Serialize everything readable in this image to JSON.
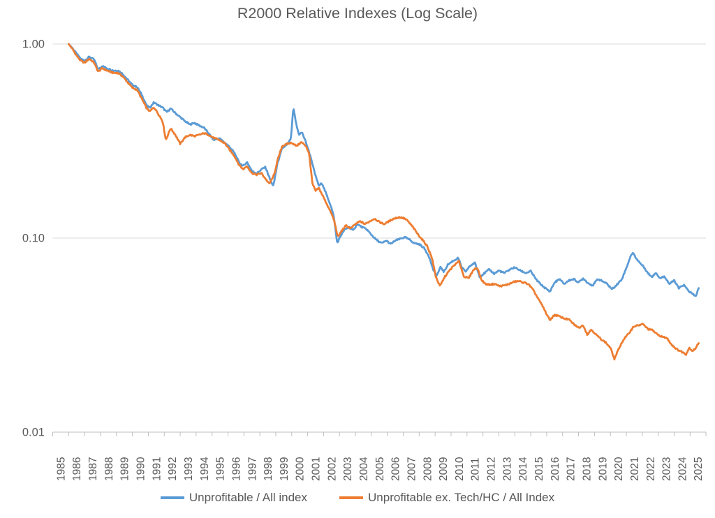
{
  "title": "R2000 Relative Indexes (Log Scale)",
  "colors": {
    "blue": "#5B9BD5",
    "orange": "#ED7D31",
    "gridline": "#D9D9D9",
    "axis": "#BFBFBF",
    "text": "#595959"
  },
  "y_axis": {
    "labels": [
      "1.00",
      "0.10",
      "0.01"
    ],
    "values": [
      1.0,
      0.1,
      0.01
    ]
  },
  "x_axis": {
    "years": [
      "1985",
      "1986",
      "1987",
      "1988",
      "1989",
      "1990",
      "1991",
      "1992",
      "1993",
      "1994",
      "1995",
      "1996",
      "1997",
      "1998",
      "1999",
      "2000",
      "2001",
      "2002",
      "2003",
      "2004",
      "2005",
      "2006",
      "2007",
      "2008",
      "2009",
      "2010",
      "2011",
      "2012",
      "2013",
      "2014",
      "2015",
      "2016",
      "2017",
      "2018",
      "2019",
      "2020",
      "2021",
      "2022",
      "2023",
      "2024",
      "2025"
    ]
  },
  "legend": [
    {
      "label": "Unprofitable / All index",
      "color": "#5B9BD5"
    },
    {
      "label": "Unprofitable ex. Tech/HC / All Index",
      "color": "#ED7D31"
    }
  ],
  "chart_data": {
    "type": "line",
    "title": "R2000 Relative Indexes (Log Scale)",
    "y_scale": "log10",
    "ylim": [
      0.01,
      1.0
    ],
    "x_range": [
      1985,
      2026
    ],
    "grid": "horizontal-decades",
    "legend_position": "bottom",
    "series": [
      {
        "name": "Unprofitable / All index",
        "color": "#5B9BD5",
        "points": [
          [
            1986.0,
            1.0
          ],
          [
            1986.25,
            0.95
          ],
          [
            1986.5,
            0.89
          ],
          [
            1986.75,
            0.84
          ],
          [
            1987.0,
            0.82
          ],
          [
            1987.3,
            0.86
          ],
          [
            1987.6,
            0.83
          ],
          [
            1987.85,
            0.74
          ],
          [
            1988.1,
            0.77
          ],
          [
            1988.4,
            0.75
          ],
          [
            1988.8,
            0.73
          ],
          [
            1989.1,
            0.73
          ],
          [
            1989.4,
            0.7
          ],
          [
            1989.7,
            0.655
          ],
          [
            1990.0,
            0.615
          ],
          [
            1990.3,
            0.6
          ],
          [
            1990.6,
            0.545
          ],
          [
            1990.9,
            0.48
          ],
          [
            1991.1,
            0.47
          ],
          [
            1991.35,
            0.5
          ],
          [
            1991.6,
            0.485
          ],
          [
            1991.9,
            0.47
          ],
          [
            1992.15,
            0.445
          ],
          [
            1992.4,
            0.465
          ],
          [
            1992.7,
            0.44
          ],
          [
            1993.0,
            0.42
          ],
          [
            1993.3,
            0.4
          ],
          [
            1993.6,
            0.385
          ],
          [
            1993.9,
            0.392
          ],
          [
            1994.2,
            0.38
          ],
          [
            1994.5,
            0.37
          ],
          [
            1994.8,
            0.345
          ],
          [
            1995.1,
            0.32
          ],
          [
            1995.45,
            0.327
          ],
          [
            1995.8,
            0.31
          ],
          [
            1996.1,
            0.295
          ],
          [
            1996.4,
            0.275
          ],
          [
            1996.7,
            0.245
          ],
          [
            1996.95,
            0.235
          ],
          [
            1997.2,
            0.246
          ],
          [
            1997.5,
            0.222
          ],
          [
            1997.8,
            0.215
          ],
          [
            1998.1,
            0.226
          ],
          [
            1998.35,
            0.232
          ],
          [
            1998.65,
            0.2
          ],
          [
            1998.85,
            0.185
          ],
          [
            1999.1,
            0.242
          ],
          [
            1999.4,
            0.29
          ],
          [
            1999.7,
            0.302
          ],
          [
            1999.95,
            0.325
          ],
          [
            2000.1,
            0.47
          ],
          [
            2000.3,
            0.38
          ],
          [
            2000.45,
            0.342
          ],
          [
            2000.65,
            0.35
          ],
          [
            2000.9,
            0.31
          ],
          [
            2001.2,
            0.26
          ],
          [
            2001.45,
            0.215
          ],
          [
            2001.7,
            0.186
          ],
          [
            2001.9,
            0.192
          ],
          [
            2002.2,
            0.166
          ],
          [
            2002.45,
            0.147
          ],
          [
            2002.65,
            0.128
          ],
          [
            2002.85,
            0.094
          ],
          [
            2003.05,
            0.102
          ],
          [
            2003.3,
            0.11
          ],
          [
            2003.6,
            0.114
          ],
          [
            2003.85,
            0.109
          ],
          [
            2004.1,
            0.118
          ],
          [
            2004.4,
            0.114
          ],
          [
            2004.7,
            0.111
          ],
          [
            2005.0,
            0.104
          ],
          [
            2005.3,
            0.098
          ],
          [
            2005.65,
            0.094
          ],
          [
            2005.95,
            0.097
          ],
          [
            2006.2,
            0.093
          ],
          [
            2006.5,
            0.097
          ],
          [
            2006.8,
            0.099
          ],
          [
            2007.1,
            0.101
          ],
          [
            2007.4,
            0.098
          ],
          [
            2007.7,
            0.094
          ],
          [
            2008.0,
            0.093
          ],
          [
            2008.3,
            0.089
          ],
          [
            2008.6,
            0.081
          ],
          [
            2008.9,
            0.068
          ],
          [
            2009.1,
            0.064
          ],
          [
            2009.35,
            0.071
          ],
          [
            2009.55,
            0.067
          ],
          [
            2009.8,
            0.073
          ],
          [
            2010.1,
            0.076
          ],
          [
            2010.45,
            0.079
          ],
          [
            2010.65,
            0.071
          ],
          [
            2010.9,
            0.067
          ],
          [
            2011.2,
            0.072
          ],
          [
            2011.5,
            0.0745
          ],
          [
            2011.8,
            0.063
          ],
          [
            2012.1,
            0.066
          ],
          [
            2012.4,
            0.069
          ],
          [
            2012.7,
            0.0655
          ],
          [
            2013.0,
            0.068
          ],
          [
            2013.35,
            0.066
          ],
          [
            2013.7,
            0.069
          ],
          [
            2014.0,
            0.0705
          ],
          [
            2014.35,
            0.068
          ],
          [
            2014.7,
            0.066
          ],
          [
            2015.0,
            0.0675
          ],
          [
            2015.35,
            0.061
          ],
          [
            2015.7,
            0.057
          ],
          [
            2016.0,
            0.0545
          ],
          [
            2016.2,
            0.053
          ],
          [
            2016.5,
            0.059
          ],
          [
            2016.8,
            0.0615
          ],
          [
            2017.1,
            0.058
          ],
          [
            2017.4,
            0.0605
          ],
          [
            2017.7,
            0.0615
          ],
          [
            2018.0,
            0.059
          ],
          [
            2018.3,
            0.062
          ],
          [
            2018.6,
            0.0585
          ],
          [
            2018.9,
            0.057
          ],
          [
            2019.2,
            0.0615
          ],
          [
            2019.5,
            0.06
          ],
          [
            2019.8,
            0.058
          ],
          [
            2020.1,
            0.0545
          ],
          [
            2020.4,
            0.0575
          ],
          [
            2020.7,
            0.061
          ],
          [
            2021.0,
            0.07
          ],
          [
            2021.2,
            0.078
          ],
          [
            2021.4,
            0.0845
          ],
          [
            2021.6,
            0.079
          ],
          [
            2021.85,
            0.0745
          ],
          [
            2022.1,
            0.071
          ],
          [
            2022.35,
            0.066
          ],
          [
            2022.6,
            0.063
          ],
          [
            2022.85,
            0.0665
          ],
          [
            2023.1,
            0.062
          ],
          [
            2023.4,
            0.0635
          ],
          [
            2023.7,
            0.058
          ],
          [
            2024.0,
            0.0605
          ],
          [
            2024.3,
            0.055
          ],
          [
            2024.6,
            0.0575
          ],
          [
            2024.9,
            0.0535
          ],
          [
            2025.15,
            0.0515
          ],
          [
            2025.35,
            0.05
          ],
          [
            2025.55,
            0.0555
          ]
        ]
      },
      {
        "name": "Unprofitable ex. Tech/HC / All Index",
        "color": "#ED7D31",
        "points": [
          [
            1986.0,
            1.0
          ],
          [
            1986.25,
            0.94
          ],
          [
            1986.5,
            0.87
          ],
          [
            1986.75,
            0.82
          ],
          [
            1987.0,
            0.8
          ],
          [
            1987.3,
            0.84
          ],
          [
            1987.6,
            0.8
          ],
          [
            1987.85,
            0.72
          ],
          [
            1988.1,
            0.75
          ],
          [
            1988.4,
            0.73
          ],
          [
            1988.8,
            0.71
          ],
          [
            1989.1,
            0.71
          ],
          [
            1989.4,
            0.68
          ],
          [
            1989.7,
            0.635
          ],
          [
            1990.0,
            0.595
          ],
          [
            1990.3,
            0.58
          ],
          [
            1990.6,
            0.52
          ],
          [
            1990.9,
            0.465
          ],
          [
            1991.1,
            0.45
          ],
          [
            1991.35,
            0.472
          ],
          [
            1991.6,
            0.44
          ],
          [
            1991.9,
            0.4
          ],
          [
            1992.1,
            0.32
          ],
          [
            1992.4,
            0.368
          ],
          [
            1992.7,
            0.34
          ],
          [
            1993.0,
            0.306
          ],
          [
            1993.3,
            0.33
          ],
          [
            1993.6,
            0.34
          ],
          [
            1993.9,
            0.335
          ],
          [
            1994.2,
            0.34
          ],
          [
            1994.5,
            0.347
          ],
          [
            1994.8,
            0.34
          ],
          [
            1995.1,
            0.328
          ],
          [
            1995.45,
            0.32
          ],
          [
            1995.8,
            0.308
          ],
          [
            1996.1,
            0.285
          ],
          [
            1996.4,
            0.265
          ],
          [
            1996.7,
            0.238
          ],
          [
            1996.95,
            0.226
          ],
          [
            1997.2,
            0.235
          ],
          [
            1997.5,
            0.216
          ],
          [
            1997.8,
            0.212
          ],
          [
            1998.1,
            0.216
          ],
          [
            1998.35,
            0.202
          ],
          [
            1998.6,
            0.19
          ],
          [
            1998.9,
            0.212
          ],
          [
            1999.1,
            0.25
          ],
          [
            1999.4,
            0.298
          ],
          [
            1999.7,
            0.305
          ],
          [
            2000.0,
            0.31
          ],
          [
            2000.3,
            0.298
          ],
          [
            2000.6,
            0.312
          ],
          [
            2000.9,
            0.298
          ],
          [
            2001.1,
            0.27
          ],
          [
            2001.3,
            0.19
          ],
          [
            2001.5,
            0.175
          ],
          [
            2001.7,
            0.181
          ],
          [
            2001.95,
            0.165
          ],
          [
            2002.2,
            0.15
          ],
          [
            2002.45,
            0.136
          ],
          [
            2002.65,
            0.124
          ],
          [
            2002.9,
            0.101
          ],
          [
            2003.1,
            0.108
          ],
          [
            2003.4,
            0.116
          ],
          [
            2003.7,
            0.112
          ],
          [
            2004.0,
            0.118
          ],
          [
            2004.3,
            0.122
          ],
          [
            2004.6,
            0.118
          ],
          [
            2004.9,
            0.122
          ],
          [
            2005.2,
            0.126
          ],
          [
            2005.5,
            0.121
          ],
          [
            2005.8,
            0.118
          ],
          [
            2006.1,
            0.122
          ],
          [
            2006.4,
            0.126
          ],
          [
            2006.75,
            0.128
          ],
          [
            2007.1,
            0.126
          ],
          [
            2007.3,
            0.122
          ],
          [
            2007.6,
            0.114
          ],
          [
            2007.9,
            0.105
          ],
          [
            2008.2,
            0.098
          ],
          [
            2008.5,
            0.091
          ],
          [
            2008.8,
            0.079
          ],
          [
            2009.05,
            0.063
          ],
          [
            2009.3,
            0.0565
          ],
          [
            2009.6,
            0.063
          ],
          [
            2009.9,
            0.068
          ],
          [
            2010.2,
            0.0725
          ],
          [
            2010.5,
            0.076
          ],
          [
            2010.8,
            0.0635
          ],
          [
            2011.1,
            0.062
          ],
          [
            2011.4,
            0.0685
          ],
          [
            2011.65,
            0.0705
          ],
          [
            2011.9,
            0.061
          ],
          [
            2012.15,
            0.058
          ],
          [
            2012.45,
            0.0575
          ],
          [
            2012.75,
            0.058
          ],
          [
            2013.05,
            0.0565
          ],
          [
            2013.35,
            0.057
          ],
          [
            2013.65,
            0.058
          ],
          [
            2013.95,
            0.0595
          ],
          [
            2014.25,
            0.06
          ],
          [
            2014.55,
            0.059
          ],
          [
            2014.85,
            0.058
          ],
          [
            2015.15,
            0.054
          ],
          [
            2015.45,
            0.049
          ],
          [
            2015.75,
            0.0445
          ],
          [
            2016.0,
            0.0405
          ],
          [
            2016.2,
            0.0378
          ],
          [
            2016.5,
            0.0402
          ],
          [
            2016.8,
            0.0395
          ],
          [
            2017.1,
            0.0385
          ],
          [
            2017.4,
            0.038
          ],
          [
            2017.7,
            0.036
          ],
          [
            2018.0,
            0.0345
          ],
          [
            2018.3,
            0.0355
          ],
          [
            2018.55,
            0.0318
          ],
          [
            2018.8,
            0.0338
          ],
          [
            2019.1,
            0.0318
          ],
          [
            2019.4,
            0.0302
          ],
          [
            2019.7,
            0.029
          ],
          [
            2020.0,
            0.0272
          ],
          [
            2020.25,
            0.0238
          ],
          [
            2020.55,
            0.0272
          ],
          [
            2020.85,
            0.0302
          ],
          [
            2021.15,
            0.0322
          ],
          [
            2021.45,
            0.035
          ],
          [
            2021.75,
            0.0355
          ],
          [
            2022.05,
            0.036
          ],
          [
            2022.35,
            0.034
          ],
          [
            2022.65,
            0.0335
          ],
          [
            2022.95,
            0.0318
          ],
          [
            2023.25,
            0.031
          ],
          [
            2023.55,
            0.0305
          ],
          [
            2023.85,
            0.0282
          ],
          [
            2024.15,
            0.0268
          ],
          [
            2024.45,
            0.026
          ],
          [
            2024.75,
            0.0252
          ],
          [
            2024.95,
            0.0272
          ],
          [
            2025.15,
            0.0262
          ],
          [
            2025.35,
            0.027
          ],
          [
            2025.55,
            0.029
          ]
        ]
      }
    ]
  }
}
